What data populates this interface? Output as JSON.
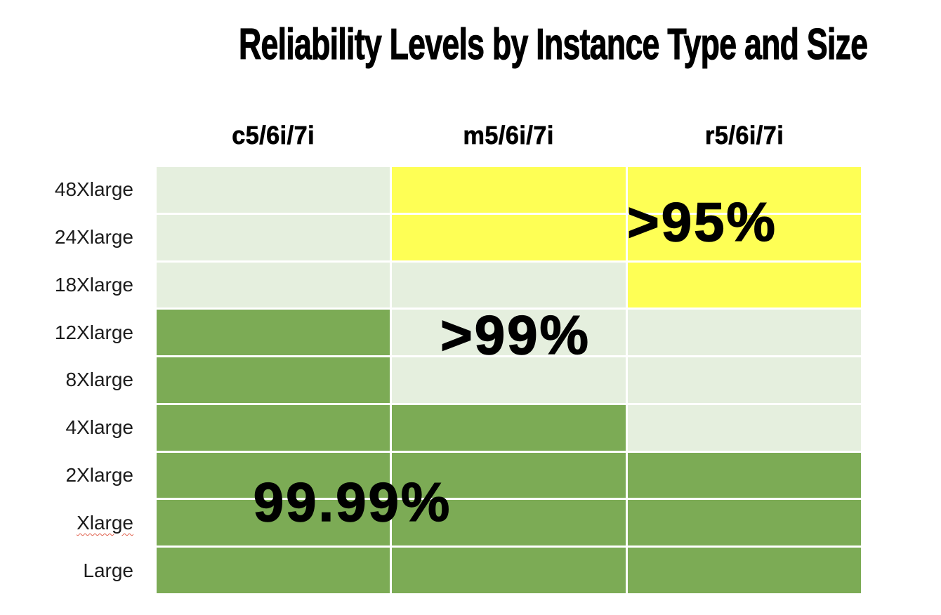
{
  "page": {
    "background": "#ffffff"
  },
  "chart_data": {
    "type": "heatmap",
    "title": "Reliability Levels by Instance Type and Size",
    "columns": [
      "c5/6i/7i",
      "m5/6i/7i",
      "r5/6i/7i"
    ],
    "rows": [
      "48Xlarge",
      "24Xlarge",
      "18Xlarge",
      "12Xlarge",
      "8Xlarge",
      "4Xlarge",
      "2Xlarge",
      "Xlarge",
      "Large"
    ],
    "matrix": [
      [
        ">99%",
        ">95%",
        ">95%"
      ],
      [
        ">99%",
        ">95%",
        ">95%"
      ],
      [
        ">99%",
        ">99%",
        ">95%"
      ],
      [
        "99.99%",
        ">99%",
        ">99%"
      ],
      [
        "99.99%",
        ">99%",
        ">99%"
      ],
      [
        "99.99%",
        "99.99%",
        ">99%"
      ],
      [
        "99.99%",
        "99.99%",
        "99.99%"
      ],
      [
        "99.99%",
        "99.99%",
        "99.99%"
      ],
      [
        "99.99%",
        "99.99%",
        "99.99%"
      ]
    ],
    "color_map": {
      "99.99%": "#7cab55",
      ">99%": "#e5efde",
      ">95%": "#feff55"
    },
    "annotations": [
      {
        "text": ">95%",
        "anchor": "r5/6i/7i column, 48Xlarge-24Xlarge rows"
      },
      {
        "text": ">99%",
        "anchor": "m5/6i/7i column, 12Xlarge row"
      },
      {
        "text": "99.99%",
        "anchor": "c5/6i/7i column, 2Xlarge-Xlarge rows"
      }
    ],
    "gridline_color": "#ffffff",
    "text_color": "#000000",
    "spellcheck_marked_row": "Xlarge",
    "spellcheck_color": "#e0604d",
    "legend_position": "none",
    "grid": true
  }
}
